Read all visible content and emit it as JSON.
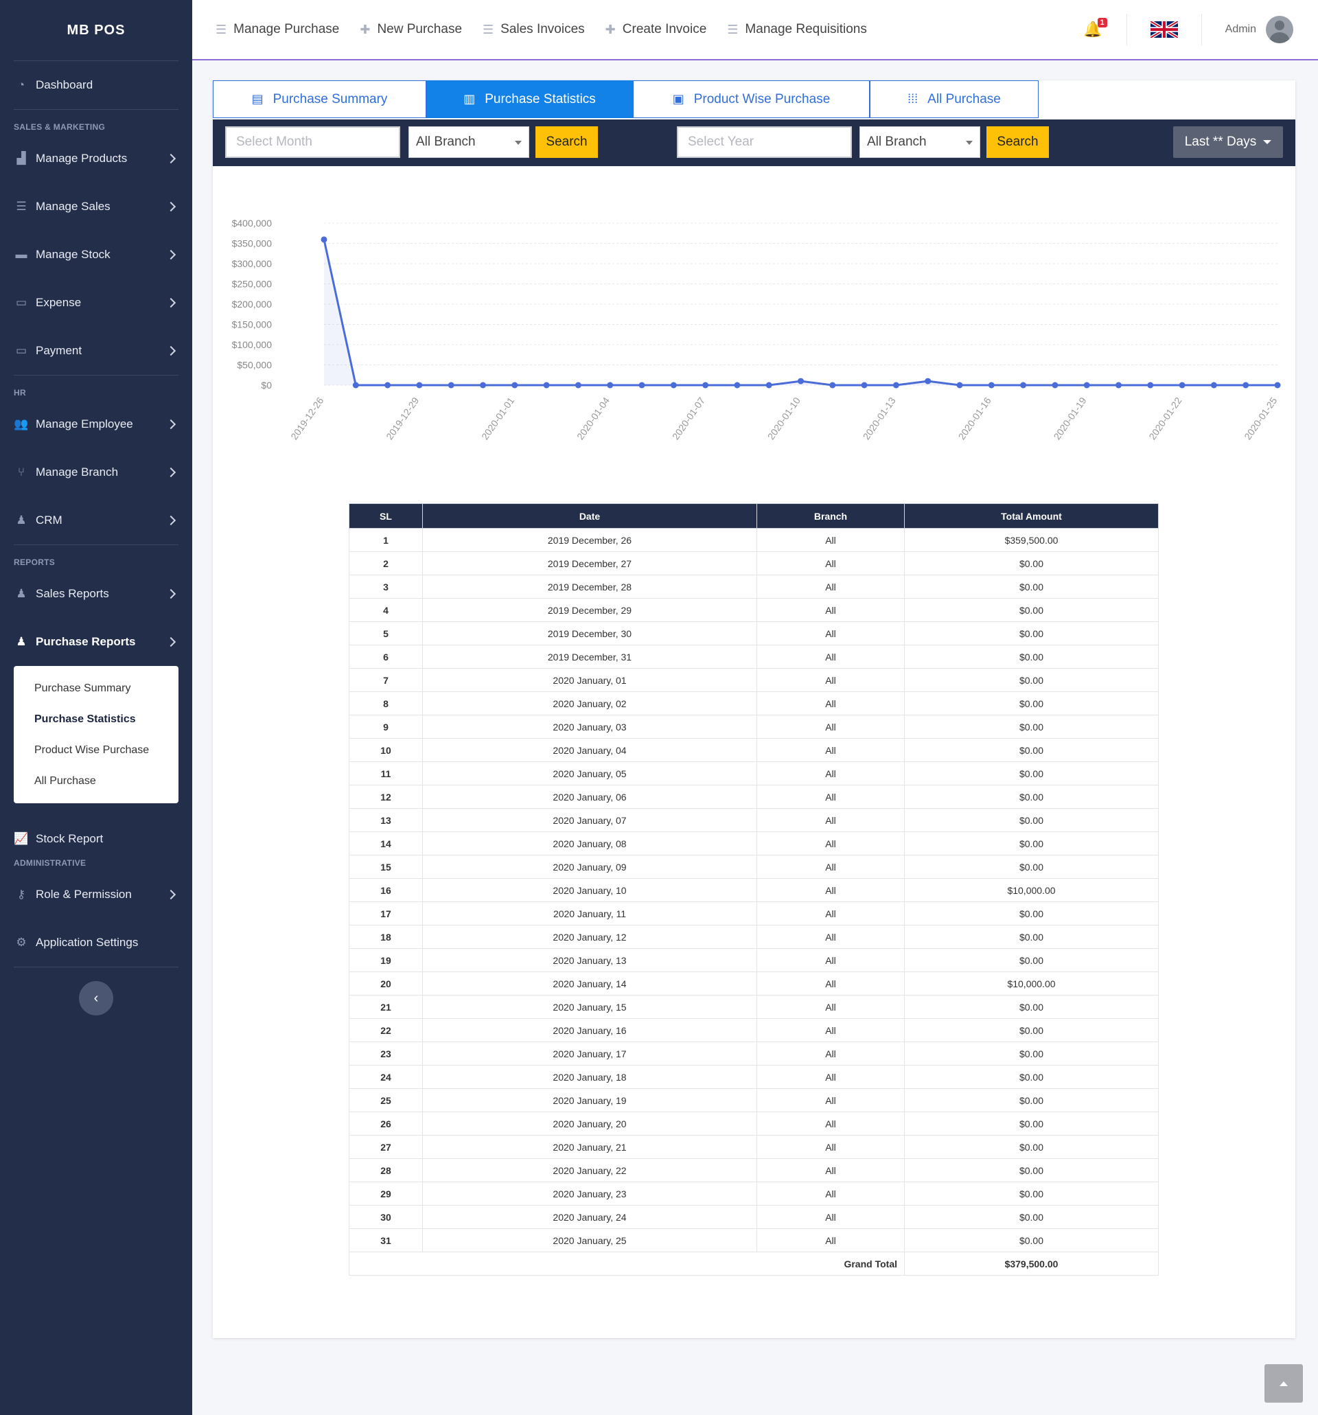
{
  "brand": "MB POS",
  "sidebar": {
    "dashboard": "Dashboard",
    "sections": {
      "sales_marketing": "SALES & MARKETING",
      "hr": "HR",
      "reports": "REPORTS",
      "administrative": "ADMINISTRATIVE"
    },
    "items": {
      "manage_products": "Manage Products",
      "manage_sales": "Manage Sales",
      "manage_stock": "Manage Stock",
      "expense": "Expense",
      "payment": "Payment",
      "manage_employee": "Manage Employee",
      "manage_branch": "Manage Branch",
      "crm": "CRM",
      "sales_reports": "Sales Reports",
      "purchase_reports": "Purchase Reports",
      "stock_report": "Stock Report",
      "role_permission": "Role & Permission",
      "application_settings": "Application Settings"
    },
    "purchase_submenu": [
      "Purchase Summary",
      "Purchase Statistics",
      "Product Wise Purchase",
      "All Purchase"
    ]
  },
  "topnav": {
    "items": [
      "Manage Purchase",
      "New Purchase",
      "Sales Invoices",
      "Create Invoice",
      "Manage Requisitions"
    ],
    "notification_count": "1",
    "user": "Admin"
  },
  "tabs": [
    "Purchase Summary",
    "Purchase Statistics",
    "Product Wise Purchase",
    "All Purchase"
  ],
  "filters": {
    "month_placeholder": "Select Month",
    "year_placeholder": "Select Year",
    "branch_1": "All Branch",
    "branch_2": "All Branch",
    "search_1": "Search",
    "search_2": "Search",
    "range": "Last ** Days"
  },
  "chart_data": {
    "type": "line",
    "color": "#4a6cd8",
    "ylim": [
      0,
      400000
    ],
    "yticks": [
      "$400,000",
      "$350,000",
      "$300,000",
      "$250,000",
      "$200,000",
      "$150,000",
      "$100,000",
      "$50,000",
      "$0"
    ],
    "xtick_labels": [
      "2019-12-26",
      "2019-12-29",
      "2020-01-01",
      "2020-01-04",
      "2020-01-07",
      "2020-01-10",
      "2020-01-13",
      "2020-01-16",
      "2020-01-19",
      "2020-01-22",
      "2020-01-25"
    ],
    "x": [
      "2019-12-26",
      "2019-12-27",
      "2019-12-28",
      "2019-12-29",
      "2019-12-30",
      "2019-12-31",
      "2020-01-01",
      "2020-01-02",
      "2020-01-03",
      "2020-01-04",
      "2020-01-05",
      "2020-01-06",
      "2020-01-07",
      "2020-01-08",
      "2020-01-09",
      "2020-01-10",
      "2020-01-11",
      "2020-01-12",
      "2020-01-13",
      "2020-01-14",
      "2020-01-15",
      "2020-01-16",
      "2020-01-17",
      "2020-01-18",
      "2020-01-19",
      "2020-01-20",
      "2020-01-21",
      "2020-01-22",
      "2020-01-23",
      "2020-01-24",
      "2020-01-25"
    ],
    "values": [
      359500,
      0,
      0,
      0,
      0,
      0,
      0,
      0,
      0,
      0,
      0,
      0,
      0,
      0,
      0,
      10000,
      0,
      0,
      0,
      10000,
      0,
      0,
      0,
      0,
      0,
      0,
      0,
      0,
      0,
      0,
      0
    ]
  },
  "table": {
    "headers": [
      "SL",
      "Date",
      "Branch",
      "Total Amount"
    ],
    "rows": [
      [
        "1",
        "2019 December, 26",
        "All",
        "$359,500.00"
      ],
      [
        "2",
        "2019 December, 27",
        "All",
        "$0.00"
      ],
      [
        "3",
        "2019 December, 28",
        "All",
        "$0.00"
      ],
      [
        "4",
        "2019 December, 29",
        "All",
        "$0.00"
      ],
      [
        "5",
        "2019 December, 30",
        "All",
        "$0.00"
      ],
      [
        "6",
        "2019 December, 31",
        "All",
        "$0.00"
      ],
      [
        "7",
        "2020 January, 01",
        "All",
        "$0.00"
      ],
      [
        "8",
        "2020 January, 02",
        "All",
        "$0.00"
      ],
      [
        "9",
        "2020 January, 03",
        "All",
        "$0.00"
      ],
      [
        "10",
        "2020 January, 04",
        "All",
        "$0.00"
      ],
      [
        "11",
        "2020 January, 05",
        "All",
        "$0.00"
      ],
      [
        "12",
        "2020 January, 06",
        "All",
        "$0.00"
      ],
      [
        "13",
        "2020 January, 07",
        "All",
        "$0.00"
      ],
      [
        "14",
        "2020 January, 08",
        "All",
        "$0.00"
      ],
      [
        "15",
        "2020 January, 09",
        "All",
        "$0.00"
      ],
      [
        "16",
        "2020 January, 10",
        "All",
        "$10,000.00"
      ],
      [
        "17",
        "2020 January, 11",
        "All",
        "$0.00"
      ],
      [
        "18",
        "2020 January, 12",
        "All",
        "$0.00"
      ],
      [
        "19",
        "2020 January, 13",
        "All",
        "$0.00"
      ],
      [
        "20",
        "2020 January, 14",
        "All",
        "$10,000.00"
      ],
      [
        "21",
        "2020 January, 15",
        "All",
        "$0.00"
      ],
      [
        "22",
        "2020 January, 16",
        "All",
        "$0.00"
      ],
      [
        "23",
        "2020 January, 17",
        "All",
        "$0.00"
      ],
      [
        "24",
        "2020 January, 18",
        "All",
        "$0.00"
      ],
      [
        "25",
        "2020 January, 19",
        "All",
        "$0.00"
      ],
      [
        "26",
        "2020 January, 20",
        "All",
        "$0.00"
      ],
      [
        "27",
        "2020 January, 21",
        "All",
        "$0.00"
      ],
      [
        "28",
        "2020 January, 22",
        "All",
        "$0.00"
      ],
      [
        "29",
        "2020 January, 23",
        "All",
        "$0.00"
      ],
      [
        "30",
        "2020 January, 24",
        "All",
        "$0.00"
      ],
      [
        "31",
        "2020 January, 25",
        "All",
        "$0.00"
      ]
    ],
    "grand_total_label": "Grand Total",
    "grand_total": "$379,500.00"
  }
}
